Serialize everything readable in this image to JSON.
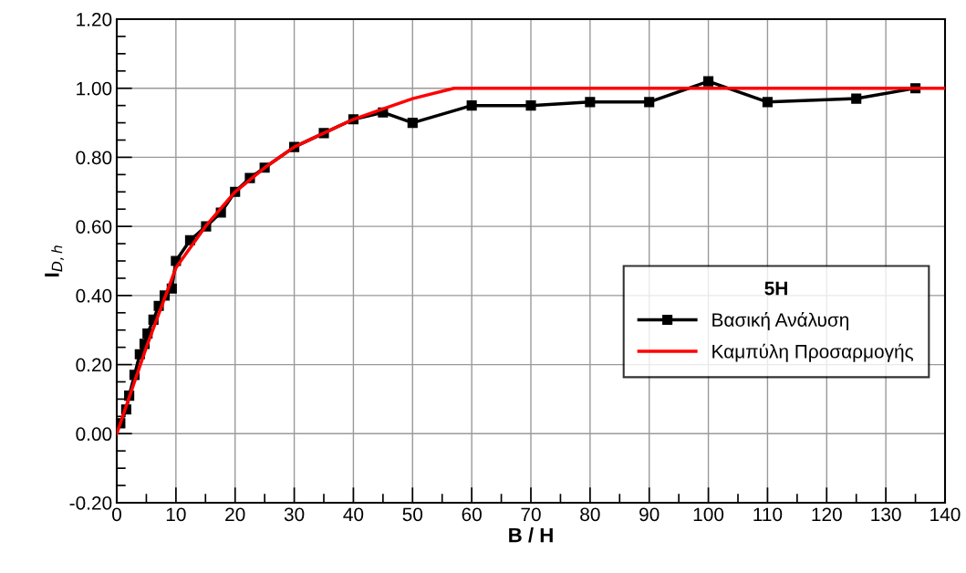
{
  "chart_data": {
    "type": "line",
    "xlabel": "B / H",
    "ylabel": "I$_{D,h}$",
    "legend_title": "5H",
    "legend": "bottom right",
    "grid": true,
    "xlim": [
      0,
      140
    ],
    "xticks": [
      0,
      10,
      20,
      30,
      40,
      50,
      60,
      70,
      80,
      90,
      100,
      110,
      120,
      130,
      140
    ],
    "ylim": [
      -0.2,
      1.2
    ],
    "yticks": [
      {
        "value": -0.2,
        "label": "-0.20"
      },
      {
        "value": 0,
        "label": "0.00"
      },
      {
        "value": 0.2,
        "label": "0.20"
      },
      {
        "value": 0.4,
        "label": "0.40"
      },
      {
        "value": 0.6,
        "label": "0.60"
      },
      {
        "value": 0.8,
        "label": "0.80"
      },
      {
        "value": 1.0,
        "label": "1.00"
      },
      {
        "value": 1.2,
        "label": "1.20"
      }
    ],
    "series": [
      {
        "name": "Βασική Ανάλυση",
        "color": "#000000",
        "marker": "square",
        "x": [
          0.6,
          1.6,
          2.1,
          3.0,
          3.9,
          4.7,
          5.2,
          6.2,
          7.1,
          8.1,
          9.3,
          10,
          12.4,
          15.1,
          17.6,
          20,
          22.5,
          25,
          30,
          35,
          40,
          45,
          50,
          60,
          70,
          80,
          90,
          100,
          110,
          125,
          135
        ],
        "values": [
          0.03,
          0.07,
          0.11,
          0.17,
          0.23,
          0.26,
          0.29,
          0.33,
          0.37,
          0.4,
          0.42,
          0.5,
          0.56,
          0.6,
          0.64,
          0.7,
          0.74,
          0.77,
          0.83,
          0.87,
          0.91,
          0.93,
          0.9,
          0.95,
          0.95,
          0.96,
          0.96,
          1.02,
          0.96,
          0.97,
          1.0
        ]
      },
      {
        "name": "Καμπύλη Προσαρμογής",
        "color": "#ff0000",
        "marker": "none",
        "x": [
          0,
          2,
          5,
          10,
          15,
          20,
          25,
          30,
          35,
          40,
          45,
          50,
          57,
          140
        ],
        "values": [
          0,
          0.1,
          0.25,
          0.48,
          0.6,
          0.7,
          0.77,
          0.83,
          0.87,
          0.91,
          0.94,
          0.97,
          1.0,
          1.0
        ]
      }
    ]
  }
}
